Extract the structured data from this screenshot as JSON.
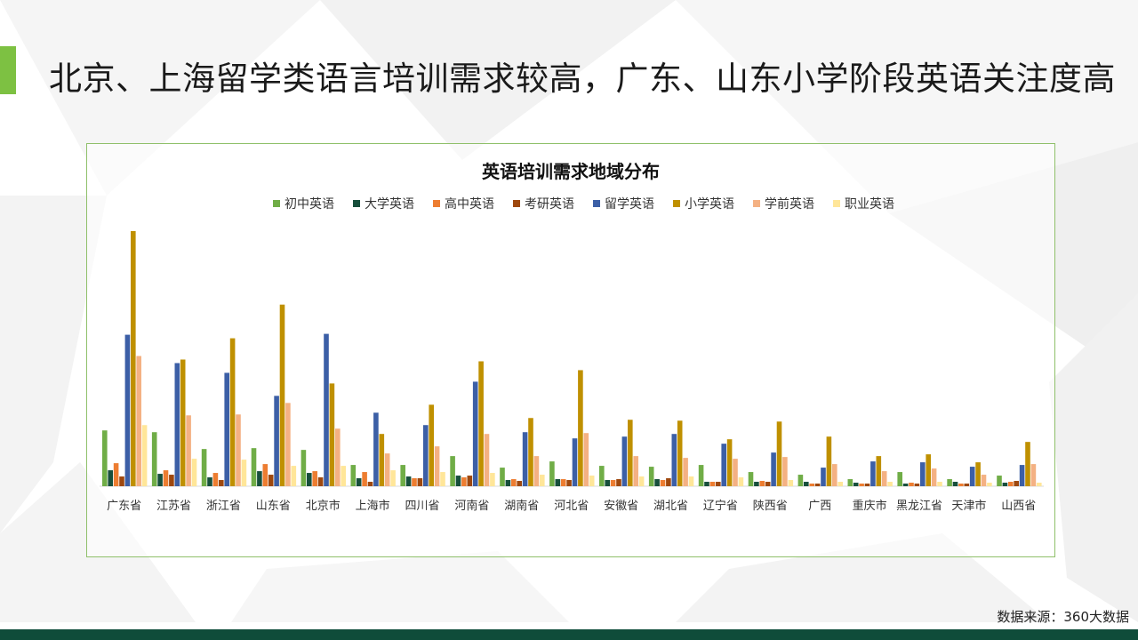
{
  "slide": {
    "title": "北京、上海留学类语言培训需求较高，广东、山东小学阶段英语关注度高",
    "source": "数据来源：360大数据"
  },
  "colors": {
    "accent": "#7dc142",
    "footer": "#0f4c3a",
    "frame": "#8fc06a"
  },
  "chart_data": {
    "type": "bar",
    "title": "英语培训需求地域分布",
    "legend_position": "top",
    "grid": false,
    "categories": [
      "广东省",
      "江苏省",
      "浙江省",
      "山东省",
      "北京市",
      "上海市",
      "四川省",
      "河南省",
      "湖南省",
      "河北省",
      "安徽省",
      "湖北省",
      "辽宁省",
      "陕西省",
      "广西",
      "重庆市",
      "黑龙江省",
      "天津市",
      "山西省"
    ],
    "series": [
      {
        "name": "初中英语",
        "color": "#70ad47",
        "values": [
          63,
          61,
          42,
          43,
          41,
          24,
          24,
          34,
          21,
          28,
          23,
          22,
          24,
          16,
          13,
          8,
          16,
          8,
          12
        ]
      },
      {
        "name": "大学英语",
        "color": "#174f3c",
        "values": [
          18,
          14,
          10,
          17,
          15,
          9,
          11,
          12,
          7,
          8,
          7,
          8,
          5,
          5,
          5,
          4,
          3,
          5,
          4
        ]
      },
      {
        "name": "高中英语",
        "color": "#ed7d31",
        "values": [
          26,
          18,
          15,
          25,
          17,
          16,
          9,
          10,
          8,
          8,
          7,
          7,
          5,
          6,
          3,
          3,
          4,
          3,
          5
        ]
      },
      {
        "name": "考研英语",
        "color": "#9e480e",
        "values": [
          11,
          13,
          7,
          13,
          10,
          5,
          9,
          12,
          6,
          7,
          8,
          9,
          5,
          5,
          3,
          3,
          3,
          3,
          6
        ]
      },
      {
        "name": "留学英语",
        "color": "#3c5fa6",
        "values": [
          171,
          139,
          128,
          102,
          172,
          83,
          69,
          118,
          61,
          54,
          56,
          59,
          48,
          38,
          21,
          28,
          27,
          22,
          24
        ]
      },
      {
        "name": "小学英语",
        "color": "#bf9000",
        "values": [
          288,
          143,
          167,
          205,
          116,
          59,
          92,
          141,
          77,
          131,
          75,
          74,
          53,
          73,
          56,
          34,
          36,
          27,
          50
        ]
      },
      {
        "name": "学前英语",
        "color": "#f4b183",
        "values": [
          147,
          80,
          81,
          94,
          65,
          37,
          45,
          59,
          34,
          60,
          34,
          32,
          31,
          33,
          25,
          17,
          20,
          13,
          25
        ]
      },
      {
        "name": "职业英语",
        "color": "#ffe699",
        "values": [
          69,
          31,
          30,
          23,
          23,
          18,
          16,
          15,
          13,
          12,
          11,
          11,
          10,
          7,
          5,
          5,
          5,
          4,
          4
        ]
      }
    ]
  }
}
